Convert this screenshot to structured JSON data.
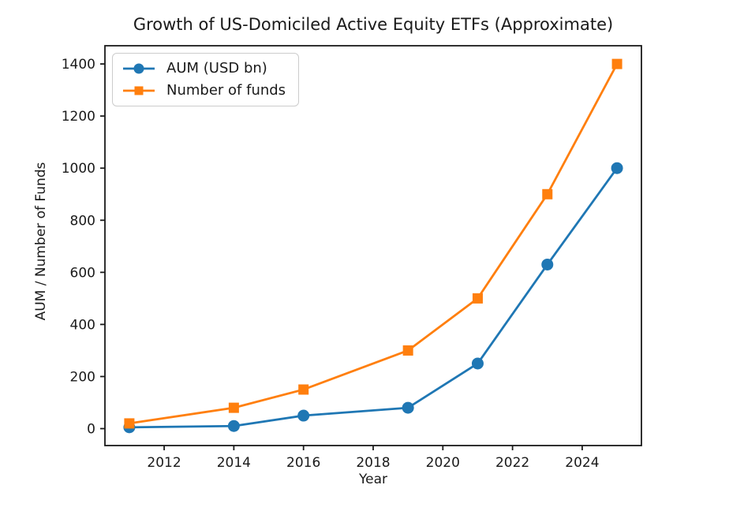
{
  "chart_data": {
    "type": "line",
    "title": "Growth of US-Domiciled Active Equity ETFs (Approximate)",
    "xlabel": "Year",
    "ylabel": "AUM / Number of Funds",
    "x": [
      2011,
      2014,
      2016,
      2019,
      2021,
      2023,
      2025
    ],
    "series": [
      {
        "name": "AUM (USD bn)",
        "color": "#1f77b4",
        "marker": "circle",
        "values": [
          5,
          10,
          50,
          80,
          250,
          630,
          1000
        ]
      },
      {
        "name": "Number of funds",
        "color": "#ff7f0e",
        "marker": "square",
        "values": [
          20,
          80,
          150,
          300,
          500,
          900,
          1400
        ]
      }
    ],
    "xticks": [
      2012,
      2014,
      2016,
      2018,
      2020,
      2022,
      2024
    ],
    "yticks": [
      0,
      200,
      400,
      600,
      800,
      1000,
      1200,
      1400
    ],
    "xlim": [
      2010.3,
      2025.7
    ],
    "ylim": [
      -65,
      1470
    ],
    "grid": false,
    "legend": {
      "position": "upper-left"
    },
    "axis_color": "#1a1a1a",
    "spine_color": "#1a1a1a"
  }
}
